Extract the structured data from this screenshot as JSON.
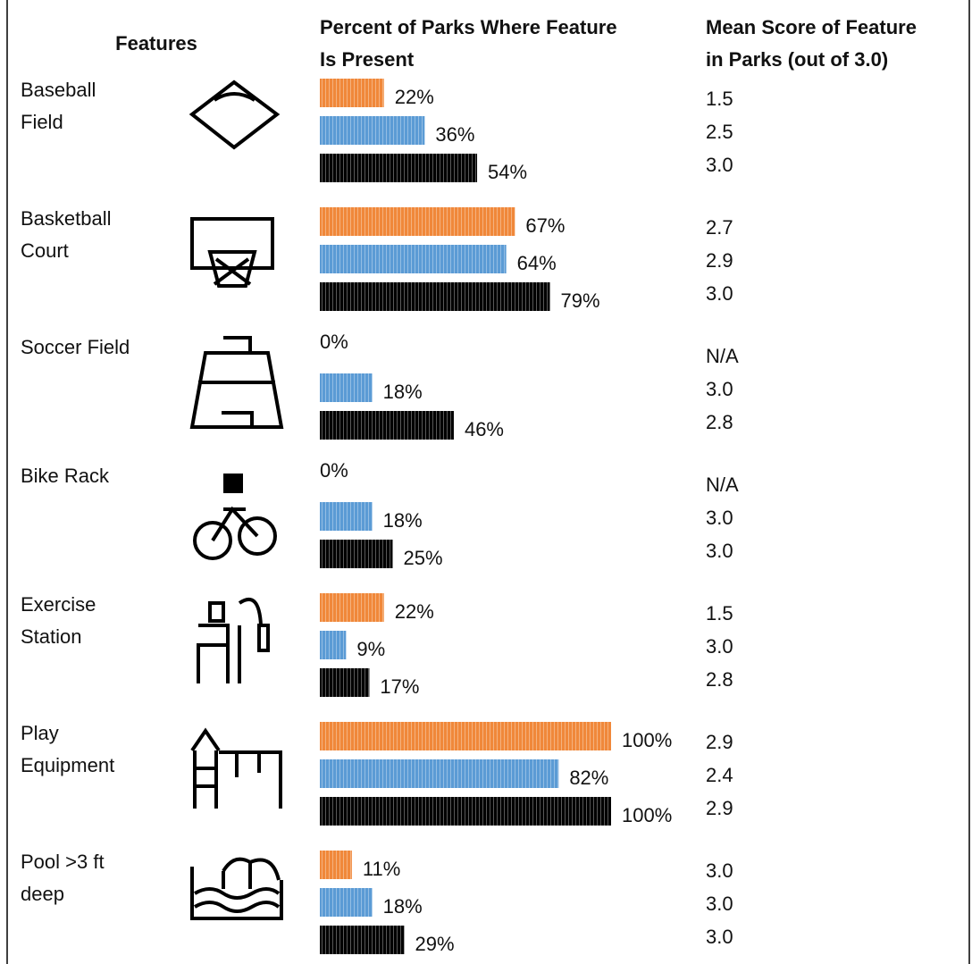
{
  "header": {
    "features": "Features",
    "percent": [
      "Percent of Parks Where Feature",
      "Is Present"
    ],
    "score": [
      "Mean Score of Feature",
      "in Parks (out of 3.0)"
    ]
  },
  "colors": [
    "#f0883a",
    "#5b9bd5",
    "#000000"
  ],
  "rows": [
    {
      "name": [
        "Baseball",
        "Field"
      ],
      "percent": [
        22,
        36,
        54
      ],
      "percent_labels": [
        "22%",
        "36%",
        "54%"
      ],
      "scores": [
        "1.5",
        "2.5",
        "3.0"
      ]
    },
    {
      "name": [
        "Basketball",
        "Court"
      ],
      "percent": [
        67,
        64,
        79
      ],
      "percent_labels": [
        "67%",
        "64%",
        "79%"
      ],
      "scores": [
        "2.7",
        "2.9",
        "3.0"
      ]
    },
    {
      "name": [
        "Soccer Field"
      ],
      "percent": [
        0,
        18,
        46
      ],
      "percent_labels": [
        "0%",
        "18%",
        "46%"
      ],
      "scores": [
        "N/A",
        "3.0",
        "2.8"
      ]
    },
    {
      "name": [
        "Bike Rack"
      ],
      "percent": [
        0,
        18,
        25
      ],
      "percent_labels": [
        "0%",
        "18%",
        "25%"
      ],
      "scores": [
        "N/A",
        "3.0",
        "3.0"
      ]
    },
    {
      "name": [
        "Exercise",
        "Station"
      ],
      "percent": [
        22,
        9,
        17
      ],
      "percent_labels": [
        "22%",
        "9%",
        "17%"
      ],
      "scores": [
        "1.5",
        "3.0",
        "2.8"
      ]
    },
    {
      "name": [
        "Play",
        "Equipment"
      ],
      "percent": [
        100,
        82,
        100
      ],
      "percent_labels": [
        "100%",
        "82%",
        "100%"
      ],
      "scores": [
        "2.9",
        "2.4",
        "2.9"
      ]
    },
    {
      "name": [
        "Pool >3 ft",
        "deep"
      ],
      "percent": [
        11,
        18,
        29
      ],
      "percent_labels": [
        "11%",
        "18%",
        "29%"
      ],
      "scores": [
        "3.0",
        "3.0",
        "3.0"
      ]
    }
  ]
}
